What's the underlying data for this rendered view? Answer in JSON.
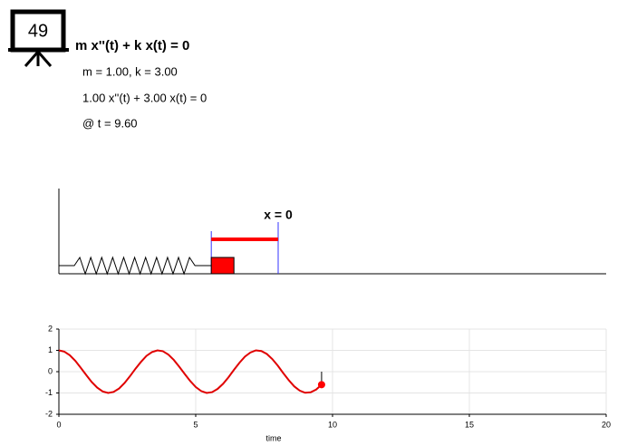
{
  "badge": "49",
  "equation": "m x''(t) + k x(t) = 0",
  "parameters": "m = 1.00, k = 3.00",
  "instance": "1.00 x''(t) + 3.00 x(t) = 0",
  "time": "@ t = 9.60",
  "diagram": {
    "label": "x = 0"
  },
  "chart_data": {
    "type": "line",
    "xlabel": "time",
    "x": [
      0,
      0.2,
      0.4,
      0.6,
      0.8,
      1,
      1.2,
      1.4,
      1.6,
      1.8,
      2,
      2.2,
      2.4,
      2.6,
      2.8,
      3,
      3.2,
      3.4,
      3.6,
      3.8,
      4,
      4.2,
      4.4,
      4.6,
      4.8,
      5,
      5.2,
      5.4,
      5.6,
      5.8,
      6,
      6.2,
      6.4,
      6.6,
      6.8,
      7,
      7.2,
      7.4,
      7.6,
      7.8,
      8,
      8.2,
      8.4,
      8.6,
      8.8,
      9,
      9.2,
      9.4,
      9.6
    ],
    "values": [
      1,
      0.94,
      0.77,
      0.51,
      0.18,
      -0.16,
      -0.49,
      -0.75,
      -0.93,
      -1,
      -0.95,
      -0.79,
      -0.53,
      -0.21,
      0.14,
      0.46,
      0.74,
      0.92,
      1,
      0.96,
      0.8,
      0.55,
      0.23,
      -0.11,
      -0.44,
      -0.72,
      -0.91,
      -1,
      -0.96,
      -0.81,
      -0.57,
      -0.26,
      0.09,
      0.42,
      0.71,
      0.9,
      1,
      0.97,
      0.83,
      0.59,
      0.28,
      -0.07,
      -0.4,
      -0.69,
      -0.89,
      -0.99,
      -0.97,
      -0.84,
      -0.61
    ],
    "color": "#e00000",
    "marker": {
      "x": 9.6,
      "y": -0.61,
      "color": "#ff0000"
    },
    "xlim": [
      0,
      20
    ],
    "xticks": [
      0,
      5,
      10,
      15,
      20
    ],
    "ylim": [
      -2,
      2
    ],
    "yticks": [
      -2,
      -1,
      0,
      1,
      2
    ],
    "grid": true
  }
}
